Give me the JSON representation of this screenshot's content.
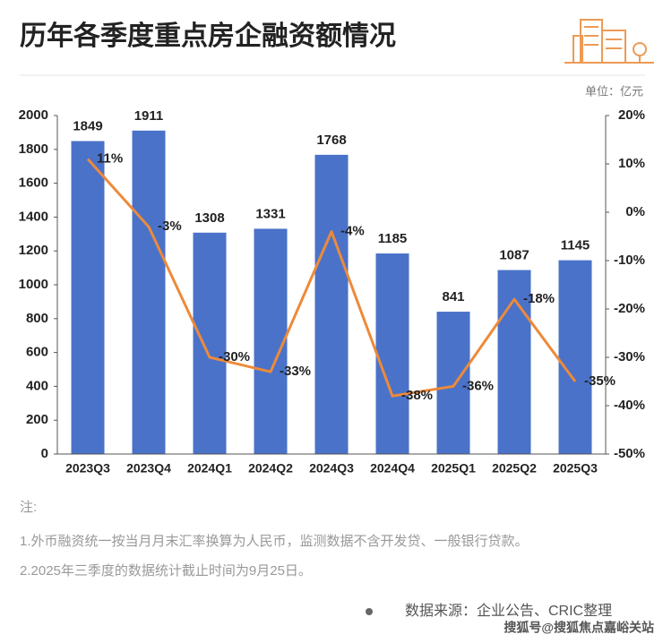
{
  "chart_data": {
    "type": "bar",
    "title": "历年各季度重点房企融资额情况",
    "unit": "单位：亿元",
    "categories": [
      "2023Q3",
      "2023Q4",
      "2024Q1",
      "2024Q2",
      "2024Q3",
      "2024Q4",
      "2025Q1",
      "2025Q2",
      "2025Q3"
    ],
    "series": [
      {
        "type": "bar",
        "color": "#4a72c9",
        "values": [
          1849,
          1911,
          1308,
          1331,
          1768,
          1185,
          841,
          1087,
          1145
        ]
      },
      {
        "type": "line",
        "axis": "y2",
        "color": "#ed8a3a",
        "values": [
          11,
          -3,
          -30,
          -33,
          -4,
          -38,
          -36,
          -18,
          -35
        ],
        "value_labels": [
          "11%",
          "-3%",
          "-30%",
          "-33%",
          "-4%",
          "-38%",
          "-36%",
          "-18%",
          "-35%"
        ]
      }
    ],
    "ylim": [
      0,
      2000
    ],
    "yticks": [
      0,
      200,
      400,
      600,
      800,
      1000,
      1200,
      1400,
      1600,
      1800,
      2000
    ],
    "y2lim": [
      -50,
      20
    ],
    "y2ticks": [
      {
        "value": -50,
        "label": "-50%"
      },
      {
        "value": -40,
        "label": "-40%"
      },
      {
        "value": -30,
        "label": "-30%"
      },
      {
        "value": -20,
        "label": "-20%"
      },
      {
        "value": -10,
        "label": "-10%"
      },
      {
        "value": 0,
        "label": "0%"
      },
      {
        "value": 10,
        "label": "10%"
      },
      {
        "value": 20,
        "label": "20%"
      }
    ],
    "notes": [
      "注:",
      "1.外币融资统一按当月月末汇率换算为人民币，监测数据不含开发贷、一般银行贷款。",
      "2.2025年三季度的数据统计截止时间为9月25日。"
    ],
    "source": "数据来源：企业公告、CRIC整理",
    "watermark": "搜狐号@搜狐焦点嘉峪关站"
  }
}
